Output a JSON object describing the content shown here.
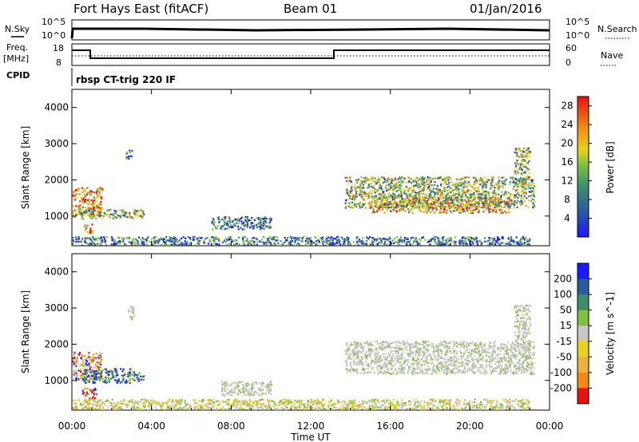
{
  "header": {
    "radar": "Fort Hays East (fitACF)",
    "beam": "Beam 01",
    "date": "01/Jan/2016"
  },
  "top_panels": {
    "left_labels": [
      "N.Sky",
      "Freq.",
      "[MHz]",
      "CPID"
    ],
    "right_labels": [
      "N.Search",
      "Nave"
    ],
    "nsky_ticks": [
      "10^5",
      "10^0"
    ],
    "nsearch_ticks": [
      "10^5",
      "10^0"
    ],
    "freq_ticks": [
      "18",
      "8"
    ],
    "nave_ticks": [
      "60",
      "0"
    ],
    "cpid_text": "rbsp CT-trig 220 IF"
  },
  "chart_data": [
    {
      "type": "heatmap",
      "name_text": "",
      "ylabel": "Slant Range [km]",
      "xlabel": "",
      "x_ticks": [
        "00:00",
        "04:00",
        "08:00",
        "12:00",
        "16:00",
        "20:00",
        "00:00"
      ],
      "y_ticks": [
        "1000",
        "2000",
        "3000",
        "4000"
      ],
      "ylim": [
        180,
        4500
      ],
      "xlim": [
        0,
        24
      ],
      "colorbar": {
        "label": "Power [dB]",
        "ticks": [
          "4",
          "8",
          "12",
          "16",
          "20",
          "24",
          "28"
        ],
        "range": [
          0,
          30
        ]
      },
      "regions": [
        {
          "t0": 0.0,
          "t1": 1.5,
          "r0": 1000,
          "r1": 1800,
          "level": "high"
        },
        {
          "t0": 0.4,
          "t1": 3.6,
          "r0": 950,
          "r1": 1200,
          "level": "mid"
        },
        {
          "t0": 0.6,
          "t1": 1.0,
          "r0": 500,
          "r1": 800,
          "level": "high"
        },
        {
          "t0": 2.7,
          "t1": 3.0,
          "r0": 2600,
          "r1": 2850,
          "level": "low"
        },
        {
          "t0": 7.0,
          "t1": 10.0,
          "r0": 650,
          "r1": 1000,
          "level": "low"
        },
        {
          "t0": 15.0,
          "t1": 22.0,
          "r0": 1100,
          "r1": 1550,
          "level": "high"
        },
        {
          "t0": 13.7,
          "t1": 23.2,
          "r0": 1250,
          "r1": 2100,
          "level": "mid"
        },
        {
          "t0": 22.2,
          "t1": 23.0,
          "r0": 1900,
          "r1": 2900,
          "level": "mid"
        },
        {
          "t0": 0.0,
          "t1": 23.0,
          "r0": 200,
          "r1": 450,
          "level": "low"
        }
      ]
    },
    {
      "type": "heatmap",
      "name_text": "",
      "ylabel": "Slant Range [km]",
      "xlabel": "Time UT",
      "x_ticks": [
        "00:00",
        "04:00",
        "08:00",
        "12:00",
        "16:00",
        "20:00",
        "00:00"
      ],
      "y_ticks": [
        "1000",
        "2000",
        "3000",
        "4000"
      ],
      "ylim": [
        180,
        4500
      ],
      "xlim": [
        0,
        24
      ],
      "colorbar": {
        "label": "Velocity [m s^-1]",
        "ticks": [
          "200",
          "100",
          "50",
          "15",
          "-15",
          "-50",
          "-100",
          "-200"
        ],
        "range": [
          -250,
          250
        ]
      },
      "regions": [
        {
          "t0": 0.0,
          "t1": 1.5,
          "r0": 1000,
          "r1": 1800,
          "level": "mixed"
        },
        {
          "t0": 0.5,
          "t1": 3.6,
          "r0": 950,
          "r1": 1350,
          "level": "blue"
        },
        {
          "t0": 0.5,
          "t1": 1.2,
          "r0": 500,
          "r1": 800,
          "level": "red"
        },
        {
          "t0": 2.8,
          "t1": 3.1,
          "r0": 2700,
          "r1": 3100,
          "level": "grey"
        },
        {
          "t0": 7.5,
          "t1": 10.0,
          "r0": 600,
          "r1": 1000,
          "level": "grey"
        },
        {
          "t0": 13.7,
          "t1": 23.2,
          "r0": 1200,
          "r1": 2100,
          "level": "grey"
        },
        {
          "t0": 22.2,
          "t1": 23.0,
          "r0": 1900,
          "r1": 3100,
          "level": "grey"
        },
        {
          "t0": 0.0,
          "t1": 23.0,
          "r0": 200,
          "r1": 500,
          "level": "ground"
        }
      ]
    }
  ]
}
